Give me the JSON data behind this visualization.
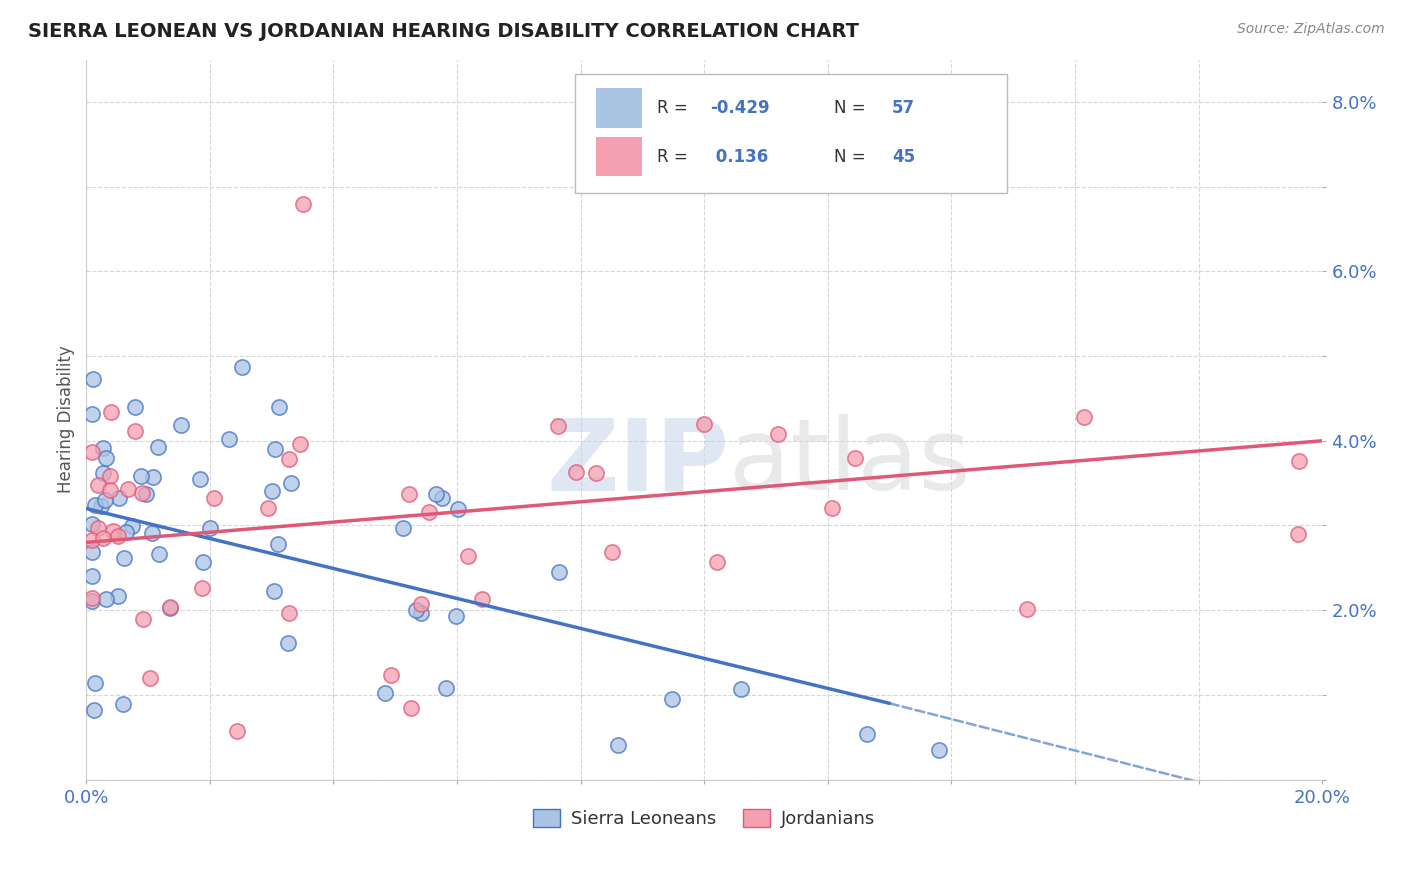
{
  "title": "SIERRA LEONEAN VS JORDANIAN HEARING DISABILITY CORRELATION CHART",
  "source": "Source: ZipAtlas.com",
  "ylabel": "Hearing Disability",
  "xlim": [
    0.0,
    0.2
  ],
  "ylim": [
    0.0,
    0.085
  ],
  "color_blue": "#aac4e4",
  "color_pink": "#f4a0b0",
  "line_blue": "#4472c4",
  "line_pink": "#e05878",
  "R_blue": -0.429,
  "N_blue": 57,
  "R_pink": 0.136,
  "N_pink": 45,
  "watermark_zip": "ZIP",
  "watermark_atlas": "atlas",
  "background_color": "#ffffff",
  "grid_color": "#cccccc",
  "tick_color": "#4472c4",
  "title_color": "#222222",
  "source_color": "#888888",
  "label_color": "#555555"
}
